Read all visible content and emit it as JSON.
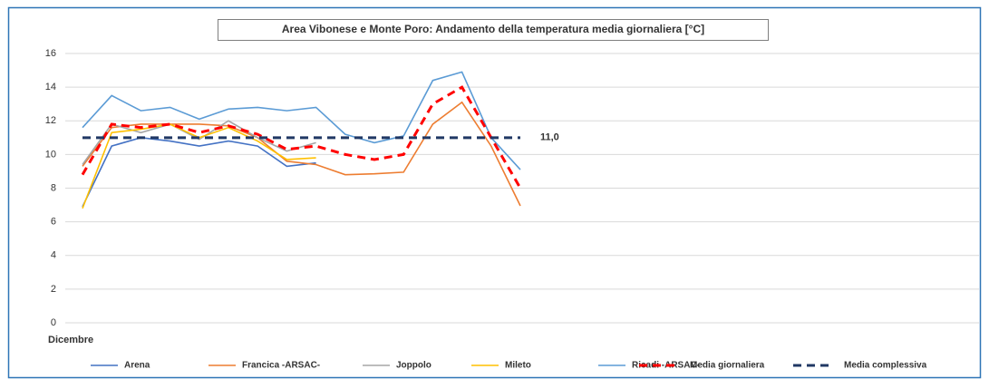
{
  "chart_data": {
    "type": "line",
    "title": "Area Vibonese e Monte Poro: Andamento della temperatura media giornaliera [°C]",
    "x_label": "Dicembre",
    "categories": [
      null,
      null,
      null,
      null,
      null,
      null,
      null,
      null,
      null,
      null,
      null,
      null,
      null,
      null,
      null,
      null,
      null,
      null,
      null,
      null,
      null,
      null,
      null,
      null,
      null,
      null,
      null,
      null,
      null,
      null,
      null
    ],
    "ylim": [
      0,
      16
    ],
    "yticks": [
      0,
      2,
      4,
      6,
      8,
      10,
      12,
      14,
      16
    ],
    "grid": true,
    "legend": "bottom",
    "series": [
      {
        "name": "Arena",
        "color": "#4472c4",
        "dash": false,
        "values": [
          6.9,
          10.5,
          11.0,
          10.8,
          10.5,
          10.8,
          10.5,
          9.3,
          9.5,
          null,
          null,
          null,
          null,
          null,
          null,
          null,
          null,
          null,
          null,
          null,
          null,
          null,
          null,
          null,
          null,
          null,
          null,
          null,
          null,
          null,
          null
        ]
      },
      {
        "name": "Francica -ARSAC-",
        "color": "#ed7d31",
        "dash": false,
        "values": [
          9.3,
          11.6,
          11.8,
          11.8,
          11.8,
          11.7,
          11.0,
          9.6,
          9.4,
          8.8,
          8.85,
          8.95,
          11.8,
          13.1,
          10.5,
          6.95,
          null,
          null,
          null,
          null,
          null,
          null,
          null,
          null,
          null,
          null,
          null,
          null,
          null,
          null,
          null
        ]
      },
      {
        "name": "Joppolo",
        "color": "#a5a5a5",
        "dash": false,
        "values": [
          9.4,
          11.8,
          11.3,
          11.8,
          10.9,
          12.0,
          11.0,
          10.2,
          10.7,
          null,
          null,
          null,
          null,
          null,
          null,
          null,
          null,
          null,
          null,
          null,
          null,
          null,
          null,
          null,
          null,
          null,
          null,
          null,
          null,
          null,
          null
        ]
      },
      {
        "name": "Mileto",
        "color": "#ffc000",
        "dash": false,
        "values": [
          6.8,
          11.3,
          11.5,
          11.8,
          11.0,
          11.6,
          10.8,
          9.7,
          9.8,
          null,
          null,
          null,
          null,
          null,
          null,
          null,
          null,
          null,
          null,
          null,
          null,
          null,
          null,
          null,
          null,
          null,
          null,
          null,
          null,
          null,
          null
        ]
      },
      {
        "name": "Ricadi -ARSAC-",
        "color": "#5b9bd5",
        "dash": false,
        "values": [
          11.6,
          13.5,
          12.6,
          12.8,
          12.1,
          12.7,
          12.8,
          12.6,
          12.8,
          11.2,
          10.7,
          11.1,
          14.4,
          14.9,
          11.0,
          9.1,
          null,
          null,
          null,
          null,
          null,
          null,
          null,
          null,
          null,
          null,
          null,
          null,
          null,
          null,
          null
        ]
      },
      {
        "name": "Media giornaliera",
        "color": "#ff0000",
        "dash": true,
        "values": [
          8.8,
          11.8,
          11.6,
          11.8,
          11.3,
          11.7,
          11.2,
          10.3,
          10.5,
          10.0,
          9.7,
          10.0,
          13.0,
          14.0,
          11.0,
          8.0,
          null,
          null,
          null,
          null,
          null,
          null,
          null,
          null,
          null,
          null,
          null,
          null,
          null,
          null,
          null
        ]
      },
      {
        "name": "Media complessiva",
        "color": "#203864",
        "dash": true,
        "values": [
          11.0,
          11.0,
          11.0,
          11.0,
          11.0,
          11.0,
          11.0,
          11.0,
          11.0,
          11.0,
          11.0,
          11.0,
          11.0,
          11.0,
          11.0,
          11.0,
          null,
          null,
          null,
          null,
          null,
          null,
          null,
          null,
          null,
          null,
          null,
          null,
          null,
          null,
          null
        ],
        "value_labels": [
          null,
          null,
          null,
          null,
          null,
          null,
          null,
          null,
          null,
          null,
          null,
          null,
          null,
          null,
          null,
          "11,0",
          null,
          null,
          null,
          null,
          null,
          null,
          null,
          null,
          null,
          null,
          null,
          null,
          null,
          null,
          null
        ]
      }
    ]
  }
}
